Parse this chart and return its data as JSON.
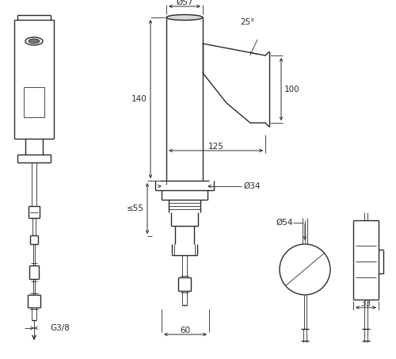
{
  "bg_color": "#ffffff",
  "line_color": "#2a2a2a",
  "lw": 1.0,
  "lw_thin": 0.6,
  "lw_thick": 1.4,
  "annotations": {
    "phi57": "Ø57",
    "phi34": "Ø34",
    "phi54": "Ø54",
    "dim140": "140",
    "dim125": "125",
    "dim100": "100",
    "dim25": "25°",
    "dim55": "≤55",
    "dim60": "60",
    "dim33": "33",
    "g38": "G3/8"
  },
  "figsize": [
    5.0,
    4.53
  ],
  "dpi": 100
}
